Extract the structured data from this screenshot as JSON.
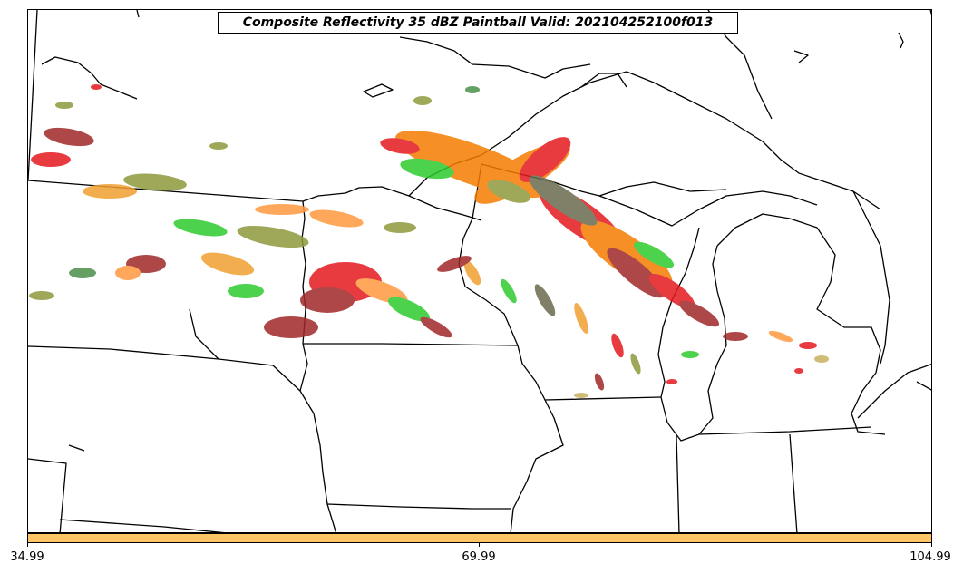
{
  "title": "Composite Reflectivity 35 dBZ Paintball Valid: 202104252100f013",
  "colorbar": {
    "color": "#ffc466",
    "ticks": [
      "34.99",
      "69.99",
      "104.99"
    ]
  },
  "member_colors": [
    "#e5191e",
    "#f57c00",
    "#ff9a40",
    "#8e9a3c",
    "#2ecb2e",
    "#6b6b4e",
    "#a02828",
    "#f0a030",
    "#4a8f4a",
    "#c8b060"
  ]
}
